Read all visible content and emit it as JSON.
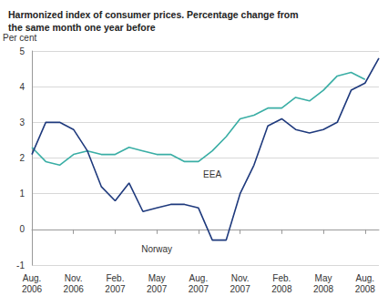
{
  "chart_data": {
    "type": "line",
    "title": "Harmonized index of consumer prices. Percentage change from\nthe same month one year before",
    "y_label": "Per cent",
    "categories": [
      "Aug.\n2006",
      null,
      null,
      "Nov.\n2006",
      null,
      null,
      "Feb.\n2007",
      null,
      null,
      "May\n2007",
      null,
      null,
      "Aug.\n2007",
      null,
      null,
      "Nov.\n2007",
      null,
      null,
      "Feb.\n2008",
      null,
      null,
      "May\n2008",
      null,
      null,
      "Aug.\n2008",
      null
    ],
    "series": [
      {
        "name": "EEA",
        "color": "#3aaea5",
        "values": [
          2.3,
          1.9,
          1.8,
          2.1,
          2.2,
          2.1,
          2.1,
          2.3,
          2.2,
          2.1,
          2.1,
          1.9,
          1.9,
          2.2,
          2.6,
          3.1,
          3.2,
          3.4,
          3.4,
          3.7,
          3.6,
          3.9,
          4.3,
          4.4,
          4.2,
          null
        ]
      },
      {
        "name": "Norway",
        "color": "#1f3a7d",
        "values": [
          2.1,
          3.0,
          3.0,
          2.8,
          2.2,
          1.2,
          0.8,
          1.3,
          0.5,
          0.6,
          0.7,
          0.7,
          0.6,
          -0.3,
          -0.3,
          1.0,
          1.8,
          2.9,
          3.1,
          2.8,
          2.7,
          2.8,
          3.0,
          3.9,
          4.1,
          4.8
        ]
      }
    ],
    "ylim": [
      -1,
      5
    ],
    "yticks": [
      -1,
      0,
      1,
      2,
      3,
      4,
      5
    ],
    "grid": true
  }
}
